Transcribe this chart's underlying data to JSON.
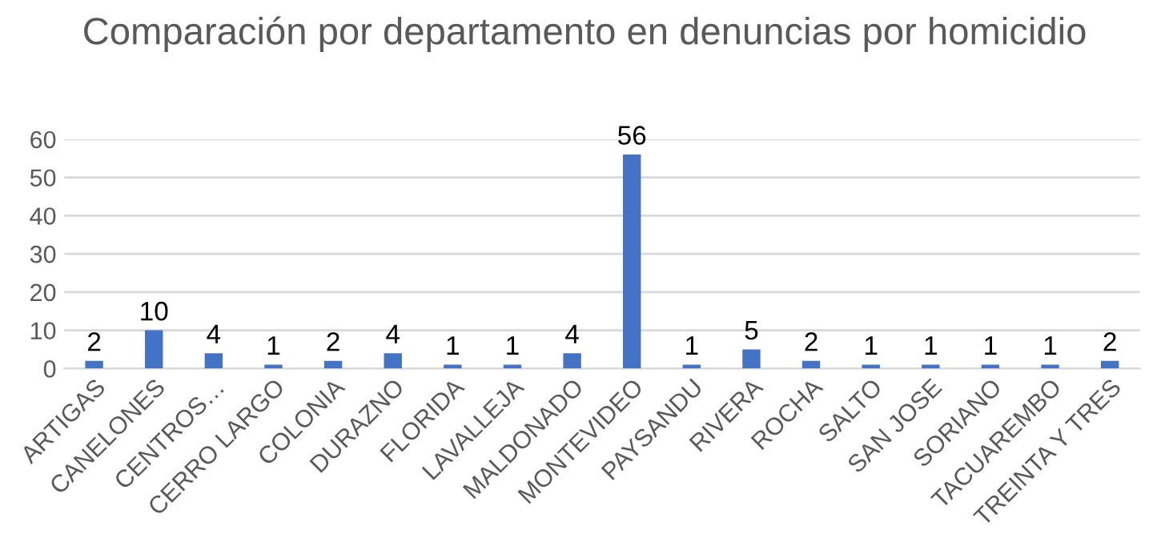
{
  "chart_data": {
    "type": "bar",
    "title": "Comparación por departamento en denuncias por homicidio",
    "categories": [
      "ARTIGAS",
      "CANELONES",
      "CENTROS…",
      "CERRO LARGO",
      "COLONIA",
      "DURAZNO",
      "FLORIDA",
      "LAVALLEJA",
      "MALDONADO",
      "MONTEVIDEO",
      "PAYSANDU",
      "RIVERA",
      "ROCHA",
      "SALTO",
      "SAN JOSE",
      "SORIANO",
      "TACUAREMBO",
      "TREINTA Y TRES"
    ],
    "values": [
      2,
      10,
      4,
      1,
      2,
      4,
      1,
      1,
      4,
      56,
      1,
      5,
      2,
      1,
      1,
      1,
      1,
      2
    ],
    "color": "#4472c4",
    "ylim": [
      0,
      60
    ],
    "yticks": [
      0,
      10,
      20,
      30,
      40,
      50,
      60
    ],
    "grid": "y",
    "data_labels": true
  }
}
